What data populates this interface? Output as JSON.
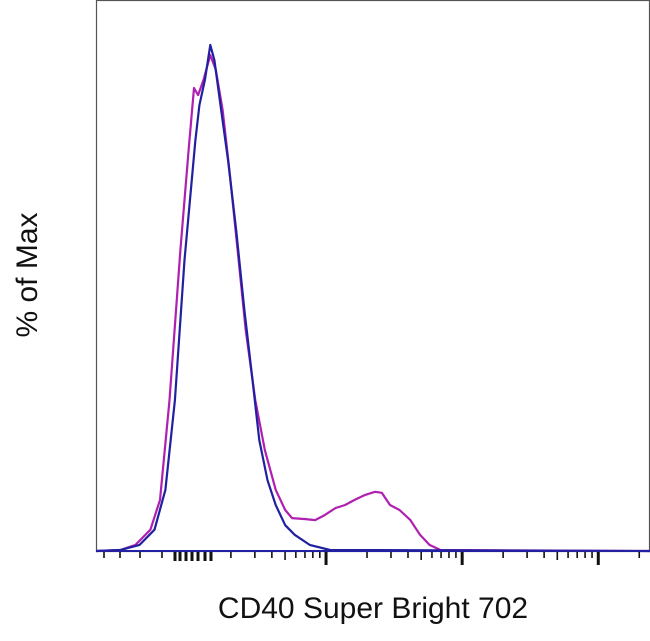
{
  "chart_data": {
    "type": "line",
    "title": "",
    "xlabel": "CD40 Super Bright 702",
    "ylabel": "% of Max",
    "x_scale": "log (biexponential), decades",
    "xlim": [
      1.31,
      5.38
    ],
    "ylim": [
      0,
      100
    ],
    "grid": false,
    "legend": "none",
    "series": [
      {
        "color": "#b020b0",
        "x": [
          1.31,
          1.49,
          1.6,
          1.71,
          1.78,
          1.85,
          1.93,
          1.99,
          2.03,
          2.06,
          2.1,
          2.15,
          2.19,
          2.24,
          2.29,
          2.35,
          2.41,
          2.48,
          2.55,
          2.63,
          2.7,
          2.75,
          2.85,
          2.92,
          2.99,
          3.07,
          3.14,
          3.21,
          3.29,
          3.36,
          3.41,
          3.47,
          3.54,
          3.62,
          3.69,
          3.76,
          3.84,
          5.38
        ],
        "y": [
          0,
          0.2,
          1.2,
          4.2,
          10.1,
          29.8,
          59.5,
          79.2,
          91.5,
          90.1,
          93.1,
          98.0,
          95.1,
          87.2,
          75.3,
          59.5,
          43.7,
          29.8,
          20.0,
          12.1,
          8.1,
          6.5,
          6.3,
          6.1,
          7.1,
          8.5,
          9.1,
          10.1,
          11.1,
          11.7,
          11.5,
          9.1,
          8.1,
          6.1,
          3.2,
          1.2,
          0.2,
          0
        ]
      },
      {
        "color": "#2020a0",
        "x": [
          1.31,
          1.49,
          1.63,
          1.74,
          1.82,
          1.89,
          1.96,
          2.04,
          2.07,
          2.11,
          2.15,
          2.18,
          2.22,
          2.28,
          2.34,
          2.4,
          2.46,
          2.51,
          2.57,
          2.63,
          2.7,
          2.77,
          2.88,
          3.03,
          5.38
        ],
        "y": [
          0,
          0.2,
          1.2,
          4.2,
          12.1,
          29.8,
          57.5,
          81.2,
          88.1,
          93.1,
          100,
          97.0,
          89.0,
          77.3,
          63.4,
          47.6,
          33.8,
          21.9,
          14.0,
          9.1,
          5.1,
          3.2,
          1.2,
          0.2,
          0
        ]
      }
    ]
  }
}
